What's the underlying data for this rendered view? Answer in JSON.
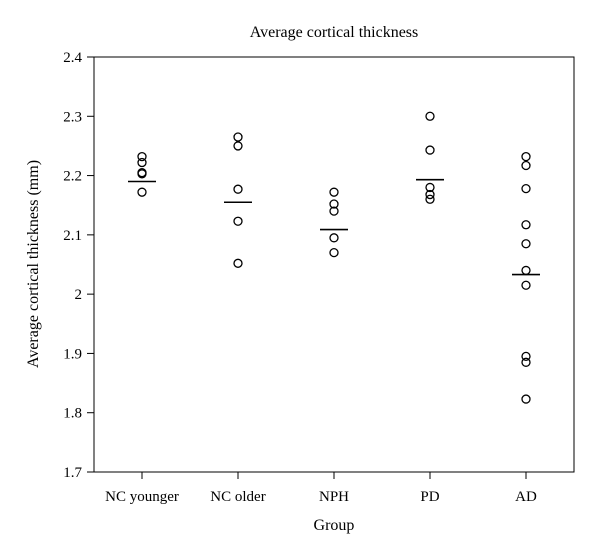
{
  "chart_data": {
    "type": "scatter",
    "title": "Average cortical thickness",
    "xlabel": "Group",
    "ylabel": "Average cortical thickness (mm)",
    "ylim": [
      1.7,
      2.4
    ],
    "yticks": [
      "1.7",
      "1.8",
      "1.9",
      "2",
      "2.1",
      "2.2",
      "2.3",
      "2.4"
    ],
    "categories": [
      "NC younger",
      "NC older",
      "NPH",
      "PD",
      "AD"
    ],
    "grid": false,
    "points": [
      [
        2.232,
        2.222,
        2.205,
        2.203,
        2.172
      ],
      [
        2.265,
        2.25,
        2.177,
        2.123,
        2.052
      ],
      [
        2.172,
        2.152,
        2.14,
        2.095,
        2.07
      ],
      [
        2.3,
        2.243,
        2.18,
        2.168,
        2.16
      ],
      [
        2.232,
        2.217,
        2.178,
        2.117,
        2.085,
        2.04,
        2.015,
        1.895,
        1.885,
        1.823
      ]
    ],
    "means": [
      2.19,
      2.155,
      2.109,
      2.193,
      2.033
    ]
  }
}
